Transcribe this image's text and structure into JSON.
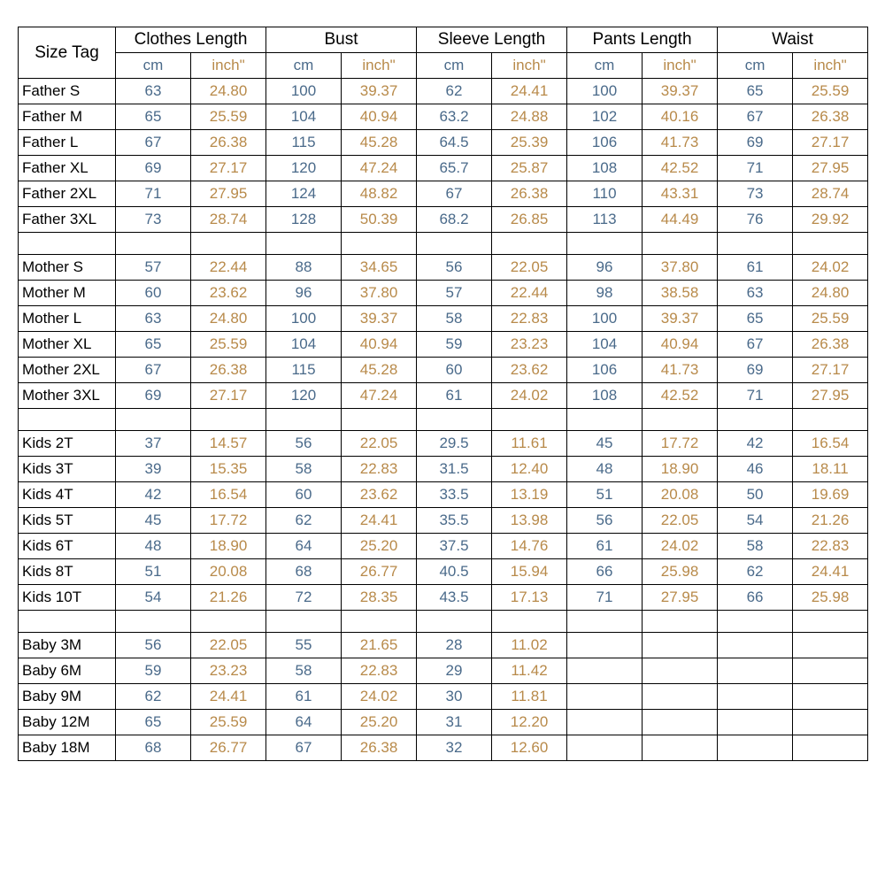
{
  "colors": {
    "cm_text": "#4a6a8a",
    "inch_text": "#b88a4a",
    "border": "#000000",
    "bg": "#ffffff"
  },
  "headers": {
    "size_tag": "Size Tag",
    "groups": [
      "Clothes Length",
      "Bust",
      "Sleeve Length",
      "Pants Length",
      "Waist"
    ],
    "sub_cm": "cm",
    "sub_inch": "inch\""
  },
  "sections": [
    {
      "rows": [
        {
          "label": "Father S",
          "vals": [
            [
              "63",
              "24.80"
            ],
            [
              "100",
              "39.37"
            ],
            [
              "62",
              "24.41"
            ],
            [
              "100",
              "39.37"
            ],
            [
              "65",
              "25.59"
            ]
          ]
        },
        {
          "label": "Father M",
          "vals": [
            [
              "65",
              "25.59"
            ],
            [
              "104",
              "40.94"
            ],
            [
              "63.2",
              "24.88"
            ],
            [
              "102",
              "40.16"
            ],
            [
              "67",
              "26.38"
            ]
          ]
        },
        {
          "label": "Father L",
          "vals": [
            [
              "67",
              "26.38"
            ],
            [
              "115",
              "45.28"
            ],
            [
              "64.5",
              "25.39"
            ],
            [
              "106",
              "41.73"
            ],
            [
              "69",
              "27.17"
            ]
          ]
        },
        {
          "label": "Father XL",
          "vals": [
            [
              "69",
              "27.17"
            ],
            [
              "120",
              "47.24"
            ],
            [
              "65.7",
              "25.87"
            ],
            [
              "108",
              "42.52"
            ],
            [
              "71",
              "27.95"
            ]
          ]
        },
        {
          "label": "Father 2XL",
          "vals": [
            [
              "71",
              "27.95"
            ],
            [
              "124",
              "48.82"
            ],
            [
              "67",
              "26.38"
            ],
            [
              "110",
              "43.31"
            ],
            [
              "73",
              "28.74"
            ]
          ]
        },
        {
          "label": "Father 3XL",
          "vals": [
            [
              "73",
              "28.74"
            ],
            [
              "128",
              "50.39"
            ],
            [
              "68.2",
              "26.85"
            ],
            [
              "113",
              "44.49"
            ],
            [
              "76",
              "29.92"
            ]
          ]
        }
      ]
    },
    {
      "rows": [
        {
          "label": "Mother S",
          "vals": [
            [
              "57",
              "22.44"
            ],
            [
              "88",
              "34.65"
            ],
            [
              "56",
              "22.05"
            ],
            [
              "96",
              "37.80"
            ],
            [
              "61",
              "24.02"
            ]
          ]
        },
        {
          "label": "Mother M",
          "vals": [
            [
              "60",
              "23.62"
            ],
            [
              "96",
              "37.80"
            ],
            [
              "57",
              "22.44"
            ],
            [
              "98",
              "38.58"
            ],
            [
              "63",
              "24.80"
            ]
          ]
        },
        {
          "label": "Mother L",
          "vals": [
            [
              "63",
              "24.80"
            ],
            [
              "100",
              "39.37"
            ],
            [
              "58",
              "22.83"
            ],
            [
              "100",
              "39.37"
            ],
            [
              "65",
              "25.59"
            ]
          ]
        },
        {
          "label": "Mother XL",
          "vals": [
            [
              "65",
              "25.59"
            ],
            [
              "104",
              "40.94"
            ],
            [
              "59",
              "23.23"
            ],
            [
              "104",
              "40.94"
            ],
            [
              "67",
              "26.38"
            ]
          ]
        },
        {
          "label": "Mother 2XL",
          "vals": [
            [
              "67",
              "26.38"
            ],
            [
              "115",
              "45.28"
            ],
            [
              "60",
              "23.62"
            ],
            [
              "106",
              "41.73"
            ],
            [
              "69",
              "27.17"
            ]
          ]
        },
        {
          "label": "Mother 3XL",
          "vals": [
            [
              "69",
              "27.17"
            ],
            [
              "120",
              "47.24"
            ],
            [
              "61",
              "24.02"
            ],
            [
              "108",
              "42.52"
            ],
            [
              "71",
              "27.95"
            ]
          ]
        }
      ]
    },
    {
      "rows": [
        {
          "label": "Kids 2T",
          "vals": [
            [
              "37",
              "14.57"
            ],
            [
              "56",
              "22.05"
            ],
            [
              "29.5",
              "11.61"
            ],
            [
              "45",
              "17.72"
            ],
            [
              "42",
              "16.54"
            ]
          ]
        },
        {
          "label": "Kids 3T",
          "vals": [
            [
              "39",
              "15.35"
            ],
            [
              "58",
              "22.83"
            ],
            [
              "31.5",
              "12.40"
            ],
            [
              "48",
              "18.90"
            ],
            [
              "46",
              "18.11"
            ]
          ]
        },
        {
          "label": "Kids 4T",
          "vals": [
            [
              "42",
              "16.54"
            ],
            [
              "60",
              "23.62"
            ],
            [
              "33.5",
              "13.19"
            ],
            [
              "51",
              "20.08"
            ],
            [
              "50",
              "19.69"
            ]
          ]
        },
        {
          "label": "Kids 5T",
          "vals": [
            [
              "45",
              "17.72"
            ],
            [
              "62",
              "24.41"
            ],
            [
              "35.5",
              "13.98"
            ],
            [
              "56",
              "22.05"
            ],
            [
              "54",
              "21.26"
            ]
          ]
        },
        {
          "label": "Kids 6T",
          "vals": [
            [
              "48",
              "18.90"
            ],
            [
              "64",
              "25.20"
            ],
            [
              "37.5",
              "14.76"
            ],
            [
              "61",
              "24.02"
            ],
            [
              "58",
              "22.83"
            ]
          ]
        },
        {
          "label": "Kids 8T",
          "vals": [
            [
              "51",
              "20.08"
            ],
            [
              "68",
              "26.77"
            ],
            [
              "40.5",
              "15.94"
            ],
            [
              "66",
              "25.98"
            ],
            [
              "62",
              "24.41"
            ]
          ]
        },
        {
          "label": "Kids 10T",
          "vals": [
            [
              "54",
              "21.26"
            ],
            [
              "72",
              "28.35"
            ],
            [
              "43.5",
              "17.13"
            ],
            [
              "71",
              "27.95"
            ],
            [
              "66",
              "25.98"
            ]
          ]
        }
      ]
    },
    {
      "rows": [
        {
          "label": "Baby 3M",
          "vals": [
            [
              "56",
              "22.05"
            ],
            [
              "55",
              "21.65"
            ],
            [
              "28",
              "11.02"
            ],
            [
              "",
              ""
            ],
            [
              "",
              ""
            ]
          ]
        },
        {
          "label": "Baby 6M",
          "vals": [
            [
              "59",
              "23.23"
            ],
            [
              "58",
              "22.83"
            ],
            [
              "29",
              "11.42"
            ],
            [
              "",
              ""
            ],
            [
              "",
              ""
            ]
          ]
        },
        {
          "label": "Baby 9M",
          "vals": [
            [
              "62",
              "24.41"
            ],
            [
              "61",
              "24.02"
            ],
            [
              "30",
              "11.81"
            ],
            [
              "",
              ""
            ],
            [
              "",
              ""
            ]
          ]
        },
        {
          "label": "Baby 12M",
          "vals": [
            [
              "65",
              "25.59"
            ],
            [
              "64",
              "25.20"
            ],
            [
              "31",
              "12.20"
            ],
            [
              "",
              ""
            ],
            [
              "",
              ""
            ]
          ]
        },
        {
          "label": "Baby 18M",
          "vals": [
            [
              "68",
              "26.77"
            ],
            [
              "67",
              "26.38"
            ],
            [
              "32",
              "12.60"
            ],
            [
              "",
              ""
            ],
            [
              "",
              ""
            ]
          ]
        }
      ]
    }
  ]
}
